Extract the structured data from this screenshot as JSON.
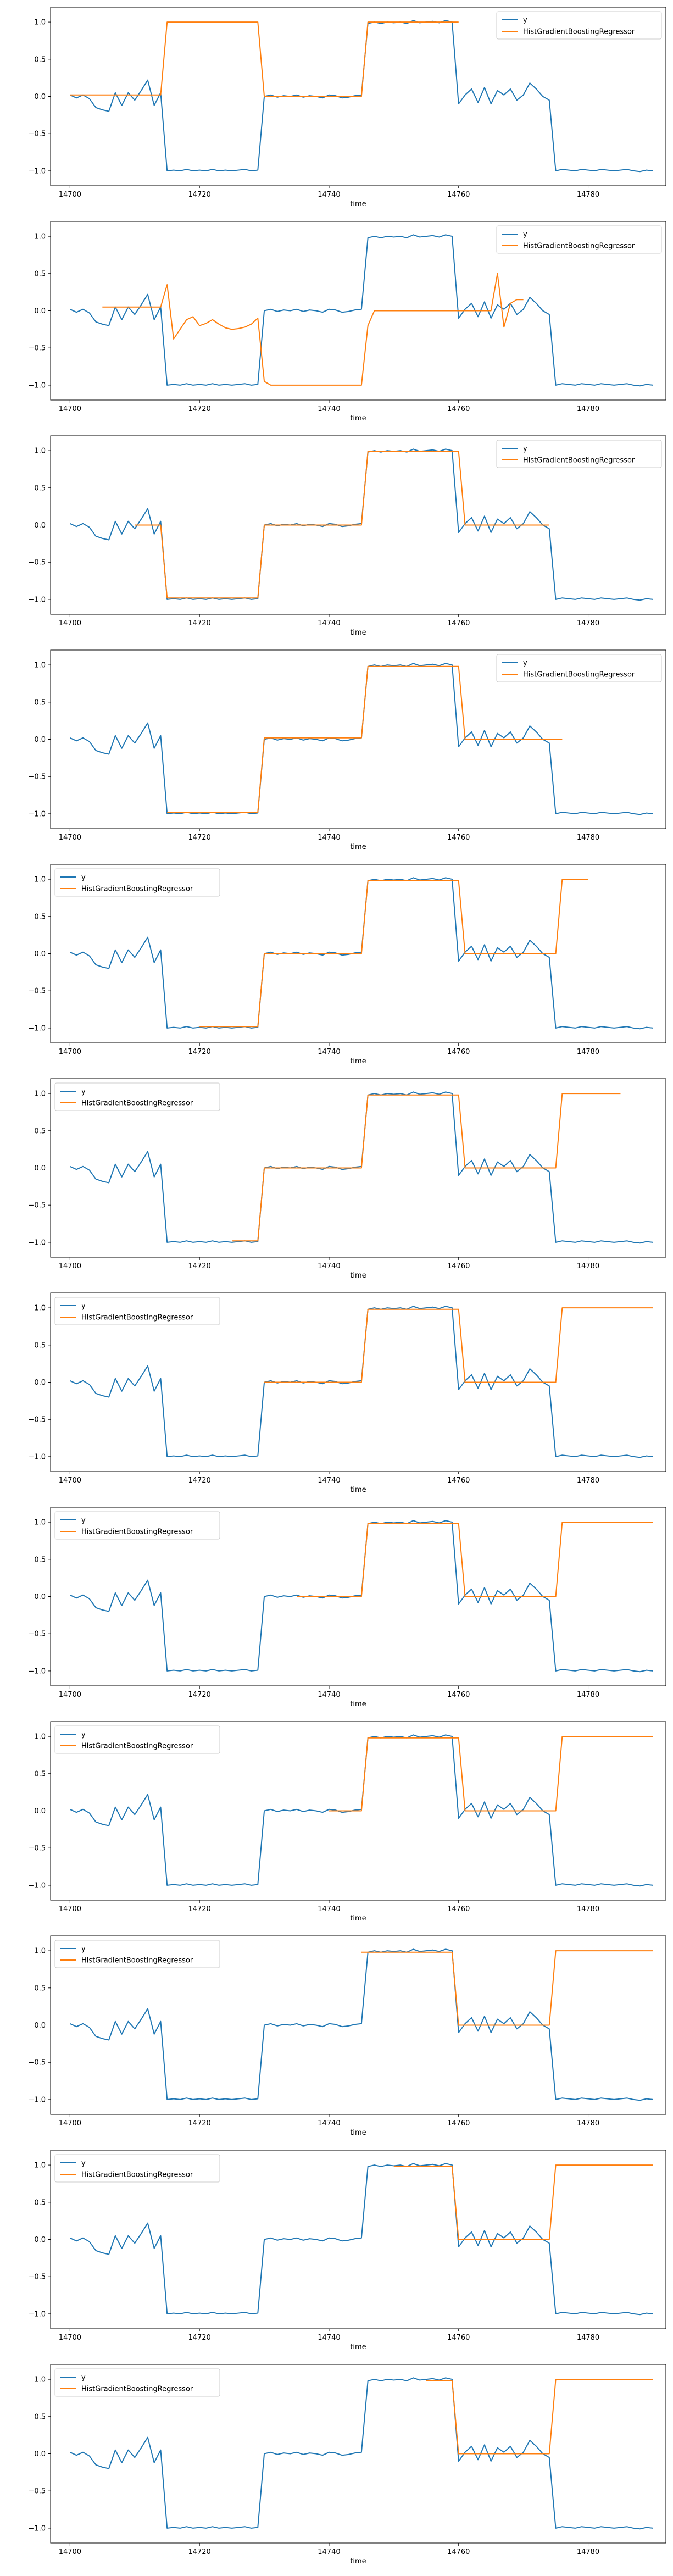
{
  "chart_common": {
    "xlabel": "time",
    "ylabel": "",
    "xlim": [
      14697,
      14792
    ],
    "ylim": [
      -1.2,
      1.2
    ],
    "xticks": [
      14700,
      14720,
      14740,
      14760,
      14780
    ],
    "yticks": [
      -1.0,
      -0.5,
      0.0,
      0.5,
      1.0
    ],
    "ytick_labels": [
      "−1.0",
      "−0.5",
      "0.0",
      "0.5",
      "1.0"
    ],
    "grid": false,
    "colors": {
      "y": "#1f77b4",
      "pred": "#ff7f0e"
    }
  },
  "chart_data": [
    {
      "type": "line",
      "legend": {
        "position": "top-right",
        "entries": [
          "y",
          "HistGradientBoostingRegressor"
        ]
      },
      "series": [
        {
          "name": "y",
          "ref": "y_series"
        },
        {
          "name": "HistGradientBoostingRegressor",
          "x_start": 14700,
          "x_end": 14760,
          "values": [
            0.02,
            0.02,
            0.02,
            0.02,
            0.02,
            0.02,
            0.02,
            0.02,
            0.02,
            0.02,
            0.02,
            0.02,
            0.02,
            0.02,
            0.02,
            1.0,
            1.0,
            1.0,
            1.0,
            1.0,
            1.0,
            1.0,
            1.0,
            1.0,
            1.0,
            1.0,
            1.0,
            1.0,
            1.0,
            1.0,
            0.0,
            0.0,
            0.0,
            0.0,
            0.0,
            0.0,
            0.0,
            0.0,
            0.0,
            0.0,
            0.0,
            0.0,
            0.0,
            0.0,
            0.0,
            0.0,
            1.0,
            1.0,
            1.0,
            1.0,
            1.0,
            1.0,
            1.0,
            1.0,
            1.0,
            1.0,
            1.0,
            1.0,
            1.0,
            1.0,
            1.0
          ]
        }
      ]
    },
    {
      "type": "line",
      "legend": {
        "position": "top-right",
        "entries": [
          "y",
          "HistGradientBoostingRegressor"
        ]
      },
      "series": [
        {
          "name": "y",
          "ref": "y_series"
        },
        {
          "name": "HistGradientBoostingRegressor",
          "x_start": 14705,
          "x_end": 14770,
          "values": [
            0.05,
            0.05,
            0.05,
            0.05,
            0.05,
            0.05,
            0.05,
            0.05,
            0.05,
            0.05,
            0.35,
            -0.38,
            -0.25,
            -0.12,
            -0.08,
            -0.2,
            -0.17,
            -0.12,
            -0.18,
            -0.23,
            -0.25,
            -0.24,
            -0.22,
            -0.18,
            -0.1,
            -0.95,
            -1.0,
            -1.0,
            -1.0,
            -1.0,
            -1.0,
            -1.0,
            -1.0,
            -1.0,
            -1.0,
            -1.0,
            -1.0,
            -1.0,
            -1.0,
            -1.0,
            -1.0,
            -0.2,
            0.0,
            0.0,
            0.0,
            0.0,
            0.0,
            0.0,
            0.0,
            0.0,
            0.0,
            0.0,
            0.0,
            0.0,
            0.0,
            0.0,
            0.0,
            0.0,
            0.0,
            0.0,
            0.0,
            0.5,
            -0.22,
            0.1,
            0.15,
            0.15
          ]
        }
      ]
    },
    {
      "type": "line",
      "legend": {
        "position": "top-right",
        "entries": [
          "y",
          "HistGradientBoostingRegressor"
        ]
      },
      "series": [
        {
          "name": "y",
          "ref": "y_series"
        },
        {
          "name": "HistGradientBoostingRegressor",
          "x_start": 14710,
          "x_end": 14774,
          "values": [
            0.0,
            0.0,
            0.0,
            0.0,
            0.0,
            -0.98,
            -0.98,
            -0.98,
            -0.98,
            -0.98,
            -0.98,
            -0.98,
            -0.98,
            -0.98,
            -0.98,
            -0.98,
            -0.98,
            -0.98,
            -0.98,
            -0.98,
            0.0,
            0.0,
            0.0,
            0.0,
            0.0,
            0.0,
            0.0,
            0.0,
            0.0,
            0.0,
            0.0,
            0.0,
            0.0,
            0.0,
            0.0,
            0.0,
            0.99,
            0.99,
            0.99,
            0.99,
            0.99,
            0.99,
            0.99,
            0.99,
            0.99,
            0.99,
            0.99,
            0.99,
            0.99,
            0.99,
            0.99,
            0.0,
            0.0,
            0.0,
            0.0,
            0.0,
            0.0,
            0.0,
            0.0,
            0.0,
            0.0,
            0.0,
            0.0,
            0.0,
            0.0
          ]
        }
      ]
    },
    {
      "type": "line",
      "legend": {
        "position": "top-right",
        "entries": [
          "y",
          "HistGradientBoostingRegressor"
        ]
      },
      "series": [
        {
          "name": "y",
          "ref": "y_series"
        },
        {
          "name": "HistGradientBoostingRegressor",
          "x_start": 14715,
          "x_end": 14776,
          "values": [
            -0.98,
            -0.98,
            -0.98,
            -0.98,
            -0.98,
            -0.98,
            -0.98,
            -0.98,
            -0.98,
            -0.98,
            -0.98,
            -0.98,
            -0.98,
            -0.98,
            -0.98,
            0.02,
            0.02,
            0.02,
            0.02,
            0.02,
            0.02,
            0.02,
            0.02,
            0.02,
            0.02,
            0.02,
            0.02,
            0.02,
            0.02,
            0.02,
            0.02,
            0.98,
            0.98,
            0.98,
            0.98,
            0.98,
            0.98,
            0.98,
            0.98,
            0.98,
            0.98,
            0.98,
            0.98,
            0.98,
            0.98,
            0.98,
            0.0,
            0.0,
            0.0,
            0.0,
            0.0,
            0.0,
            0.0,
            0.0,
            0.0,
            0.0,
            0.0,
            0.0,
            0.0,
            0.0,
            0.0,
            0.0
          ]
        }
      ]
    },
    {
      "type": "line",
      "legend": {
        "position": "top-left",
        "entries": [
          "y",
          "HistGradientBoostingRegressor"
        ]
      },
      "series": [
        {
          "name": "y",
          "ref": "y_series"
        },
        {
          "name": "HistGradientBoostingRegressor",
          "x_start": 14720,
          "x_end": 14780,
          "values": [
            -0.98,
            -0.98,
            -0.98,
            -0.98,
            -0.98,
            -0.98,
            -0.98,
            -0.98,
            -0.98,
            -0.98,
            0.0,
            0.0,
            0.0,
            0.0,
            0.0,
            0.0,
            0.0,
            0.0,
            0.0,
            0.0,
            0.0,
            0.0,
            0.0,
            0.0,
            0.0,
            0.0,
            0.98,
            0.98,
            0.98,
            0.98,
            0.98,
            0.98,
            0.98,
            0.98,
            0.98,
            0.98,
            0.98,
            0.98,
            0.98,
            0.98,
            0.98,
            0.0,
            0.0,
            0.0,
            0.0,
            0.0,
            0.0,
            0.0,
            0.0,
            0.0,
            0.0,
            0.0,
            0.0,
            0.0,
            0.0,
            0.0,
            1.0,
            1.0,
            1.0,
            1.0,
            1.0
          ]
        }
      ]
    },
    {
      "type": "line",
      "legend": {
        "position": "top-left",
        "entries": [
          "y",
          "HistGradientBoostingRegressor"
        ]
      },
      "series": [
        {
          "name": "y",
          "ref": "y_series"
        },
        {
          "name": "HistGradientBoostingRegressor",
          "x_start": 14725,
          "x_end": 14785,
          "values": [
            -0.98,
            -0.98,
            -0.98,
            -0.98,
            -0.98,
            0.0,
            0.0,
            0.0,
            0.0,
            0.0,
            0.0,
            0.0,
            0.0,
            0.0,
            0.0,
            0.0,
            0.0,
            0.0,
            0.0,
            0.0,
            0.0,
            0.98,
            0.98,
            0.98,
            0.98,
            0.98,
            0.98,
            0.98,
            0.98,
            0.98,
            0.98,
            0.98,
            0.98,
            0.98,
            0.98,
            0.98,
            0.0,
            0.0,
            0.0,
            0.0,
            0.0,
            0.0,
            0.0,
            0.0,
            0.0,
            0.0,
            0.0,
            0.0,
            0.0,
            0.0,
            0.0,
            1.0,
            1.0,
            1.0,
            1.0,
            1.0,
            1.0,
            1.0,
            1.0,
            1.0,
            1.0
          ]
        }
      ]
    },
    {
      "type": "line",
      "legend": {
        "position": "top-left",
        "entries": [
          "y",
          "HistGradientBoostingRegressor"
        ]
      },
      "series": [
        {
          "name": "y",
          "ref": "y_series"
        },
        {
          "name": "HistGradientBoostingRegressor",
          "x_start": 14730,
          "x_end": 14790,
          "values": [
            0.0,
            0.0,
            0.0,
            0.0,
            0.0,
            0.0,
            0.0,
            0.0,
            0.0,
            0.0,
            0.0,
            0.0,
            0.0,
            0.0,
            0.0,
            0.0,
            0.98,
            0.98,
            0.98,
            0.98,
            0.98,
            0.98,
            0.98,
            0.98,
            0.98,
            0.98,
            0.98,
            0.98,
            0.98,
            0.98,
            0.98,
            0.0,
            0.0,
            0.0,
            0.0,
            0.0,
            0.0,
            0.0,
            0.0,
            0.0,
            0.0,
            0.0,
            0.0,
            0.0,
            0.0,
            0.0,
            1.0,
            1.0,
            1.0,
            1.0,
            1.0,
            1.0,
            1.0,
            1.0,
            1.0,
            1.0,
            1.0,
            1.0,
            1.0,
            1.0,
            1.0
          ]
        }
      ]
    },
    {
      "type": "line",
      "legend": {
        "position": "top-left",
        "entries": [
          "y",
          "HistGradientBoostingRegressor"
        ]
      },
      "series": [
        {
          "name": "y",
          "ref": "y_series"
        },
        {
          "name": "HistGradientBoostingRegressor",
          "x_start": 14735,
          "x_end": 14790,
          "values": [
            0.0,
            0.0,
            0.0,
            0.0,
            0.0,
            0.0,
            0.0,
            0.0,
            0.0,
            0.0,
            0.0,
            0.98,
            0.98,
            0.98,
            0.98,
            0.98,
            0.98,
            0.98,
            0.98,
            0.98,
            0.98,
            0.98,
            0.98,
            0.98,
            0.98,
            0.98,
            0.0,
            0.0,
            0.0,
            0.0,
            0.0,
            0.0,
            0.0,
            0.0,
            0.0,
            0.0,
            0.0,
            0.0,
            0.0,
            0.0,
            0.0,
            1.0,
            1.0,
            1.0,
            1.0,
            1.0,
            1.0,
            1.0,
            1.0,
            1.0,
            1.0,
            1.0,
            1.0,
            1.0,
            1.0,
            1.0
          ]
        }
      ]
    },
    {
      "type": "line",
      "legend": {
        "position": "top-left",
        "entries": [
          "y",
          "HistGradientBoostingRegressor"
        ]
      },
      "series": [
        {
          "name": "y",
          "ref": "y_series"
        },
        {
          "name": "HistGradientBoostingRegressor",
          "x_start": 14740,
          "x_end": 14790,
          "values": [
            0.0,
            0.0,
            0.0,
            0.0,
            0.0,
            0.0,
            0.98,
            0.98,
            0.98,
            0.98,
            0.98,
            0.98,
            0.98,
            0.98,
            0.98,
            0.98,
            0.98,
            0.98,
            0.98,
            0.98,
            0.98,
            0.0,
            0.0,
            0.0,
            0.0,
            0.0,
            0.0,
            0.0,
            0.0,
            0.0,
            0.0,
            0.0,
            0.0,
            0.0,
            0.0,
            0.0,
            1.0,
            1.0,
            1.0,
            1.0,
            1.0,
            1.0,
            1.0,
            1.0,
            1.0,
            1.0,
            1.0,
            1.0,
            1.0,
            1.0,
            1.0
          ]
        }
      ]
    },
    {
      "type": "line",
      "legend": {
        "position": "top-left",
        "entries": [
          "y",
          "HistGradientBoostingRegressor"
        ]
      },
      "series": [
        {
          "name": "y",
          "ref": "y_series"
        },
        {
          "name": "HistGradientBoostingRegressor",
          "x_start": 14745,
          "x_end": 14790,
          "values": [
            0.98,
            0.98,
            0.98,
            0.98,
            0.98,
            0.98,
            0.98,
            0.98,
            0.98,
            0.98,
            0.98,
            0.98,
            0.98,
            0.98,
            0.98,
            0.0,
            0.0,
            0.0,
            0.0,
            0.0,
            0.0,
            0.0,
            0.0,
            0.0,
            0.0,
            0.0,
            0.0,
            0.0,
            0.0,
            0.0,
            1.0,
            1.0,
            1.0,
            1.0,
            1.0,
            1.0,
            1.0,
            1.0,
            1.0,
            1.0,
            1.0,
            1.0,
            1.0,
            1.0,
            1.0,
            1.0
          ]
        }
      ]
    },
    {
      "type": "line",
      "legend": {
        "position": "top-left",
        "entries": [
          "y",
          "HistGradientBoostingRegressor"
        ]
      },
      "series": [
        {
          "name": "y",
          "ref": "y_series"
        },
        {
          "name": "HistGradientBoostingRegressor",
          "x_start": 14750,
          "x_end": 14790,
          "values": [
            0.98,
            0.98,
            0.98,
            0.98,
            0.98,
            0.98,
            0.98,
            0.98,
            0.98,
            0.98,
            0.0,
            0.0,
            0.0,
            0.0,
            0.0,
            0.0,
            0.0,
            0.0,
            0.0,
            0.0,
            0.0,
            0.0,
            0.0,
            0.0,
            0.0,
            1.0,
            1.0,
            1.0,
            1.0,
            1.0,
            1.0,
            1.0,
            1.0,
            1.0,
            1.0,
            1.0,
            1.0,
            1.0,
            1.0,
            1.0,
            1.0
          ]
        }
      ]
    },
    {
      "type": "line",
      "legend": {
        "position": "top-left",
        "entries": [
          "y",
          "HistGradientBoostingRegressor"
        ]
      },
      "series": [
        {
          "name": "y",
          "ref": "y_series"
        },
        {
          "name": "HistGradientBoostingRegressor",
          "x_start": 14755,
          "x_end": 14790,
          "values": [
            0.98,
            0.98,
            0.98,
            0.98,
            0.98,
            0.0,
            0.0,
            0.0,
            0.0,
            0.0,
            0.0,
            0.0,
            0.0,
            0.0,
            0.0,
            0.0,
            0.0,
            0.0,
            0.0,
            0.0,
            1.0,
            1.0,
            1.0,
            1.0,
            1.0,
            1.0,
            1.0,
            1.0,
            1.0,
            1.0,
            1.0,
            1.0,
            1.0,
            1.0,
            1.0,
            1.0
          ]
        }
      ]
    }
  ],
  "y_series": {
    "name": "y",
    "x_start": 14700,
    "x_end": 14790,
    "values": [
      0.02,
      -0.02,
      0.02,
      -0.03,
      -0.15,
      -0.18,
      -0.2,
      0.05,
      -0.12,
      0.05,
      -0.05,
      0.08,
      0.22,
      -0.12,
      0.05,
      -1.0,
      -0.99,
      -1.0,
      -0.98,
      -1.0,
      -0.99,
      -1.0,
      -0.98,
      -1.0,
      -0.99,
      -1.0,
      -0.99,
      -0.98,
      -1.0,
      -0.99,
      0.0,
      0.02,
      -0.01,
      0.01,
      0.0,
      0.02,
      -0.01,
      0.01,
      0.0,
      -0.02,
      0.02,
      0.01,
      -0.02,
      -0.01,
      0.01,
      0.02,
      0.98,
      1.0,
      0.98,
      1.0,
      0.99,
      1.0,
      0.98,
      1.02,
      0.99,
      1.0,
      1.01,
      0.99,
      1.02,
      1.0,
      -0.1,
      0.02,
      0.1,
      -0.08,
      0.12,
      -0.1,
      0.08,
      0.02,
      0.1,
      -0.05,
      0.02,
      0.18,
      0.1,
      0.0,
      -0.05,
      -1.0,
      -0.98,
      -0.99,
      -1.0,
      -0.98,
      -0.99,
      -1.0,
      -0.98,
      -0.99,
      -1.0,
      -0.99,
      -0.98,
      -1.0,
      -1.01,
      -0.99,
      -1.0
    ]
  }
}
